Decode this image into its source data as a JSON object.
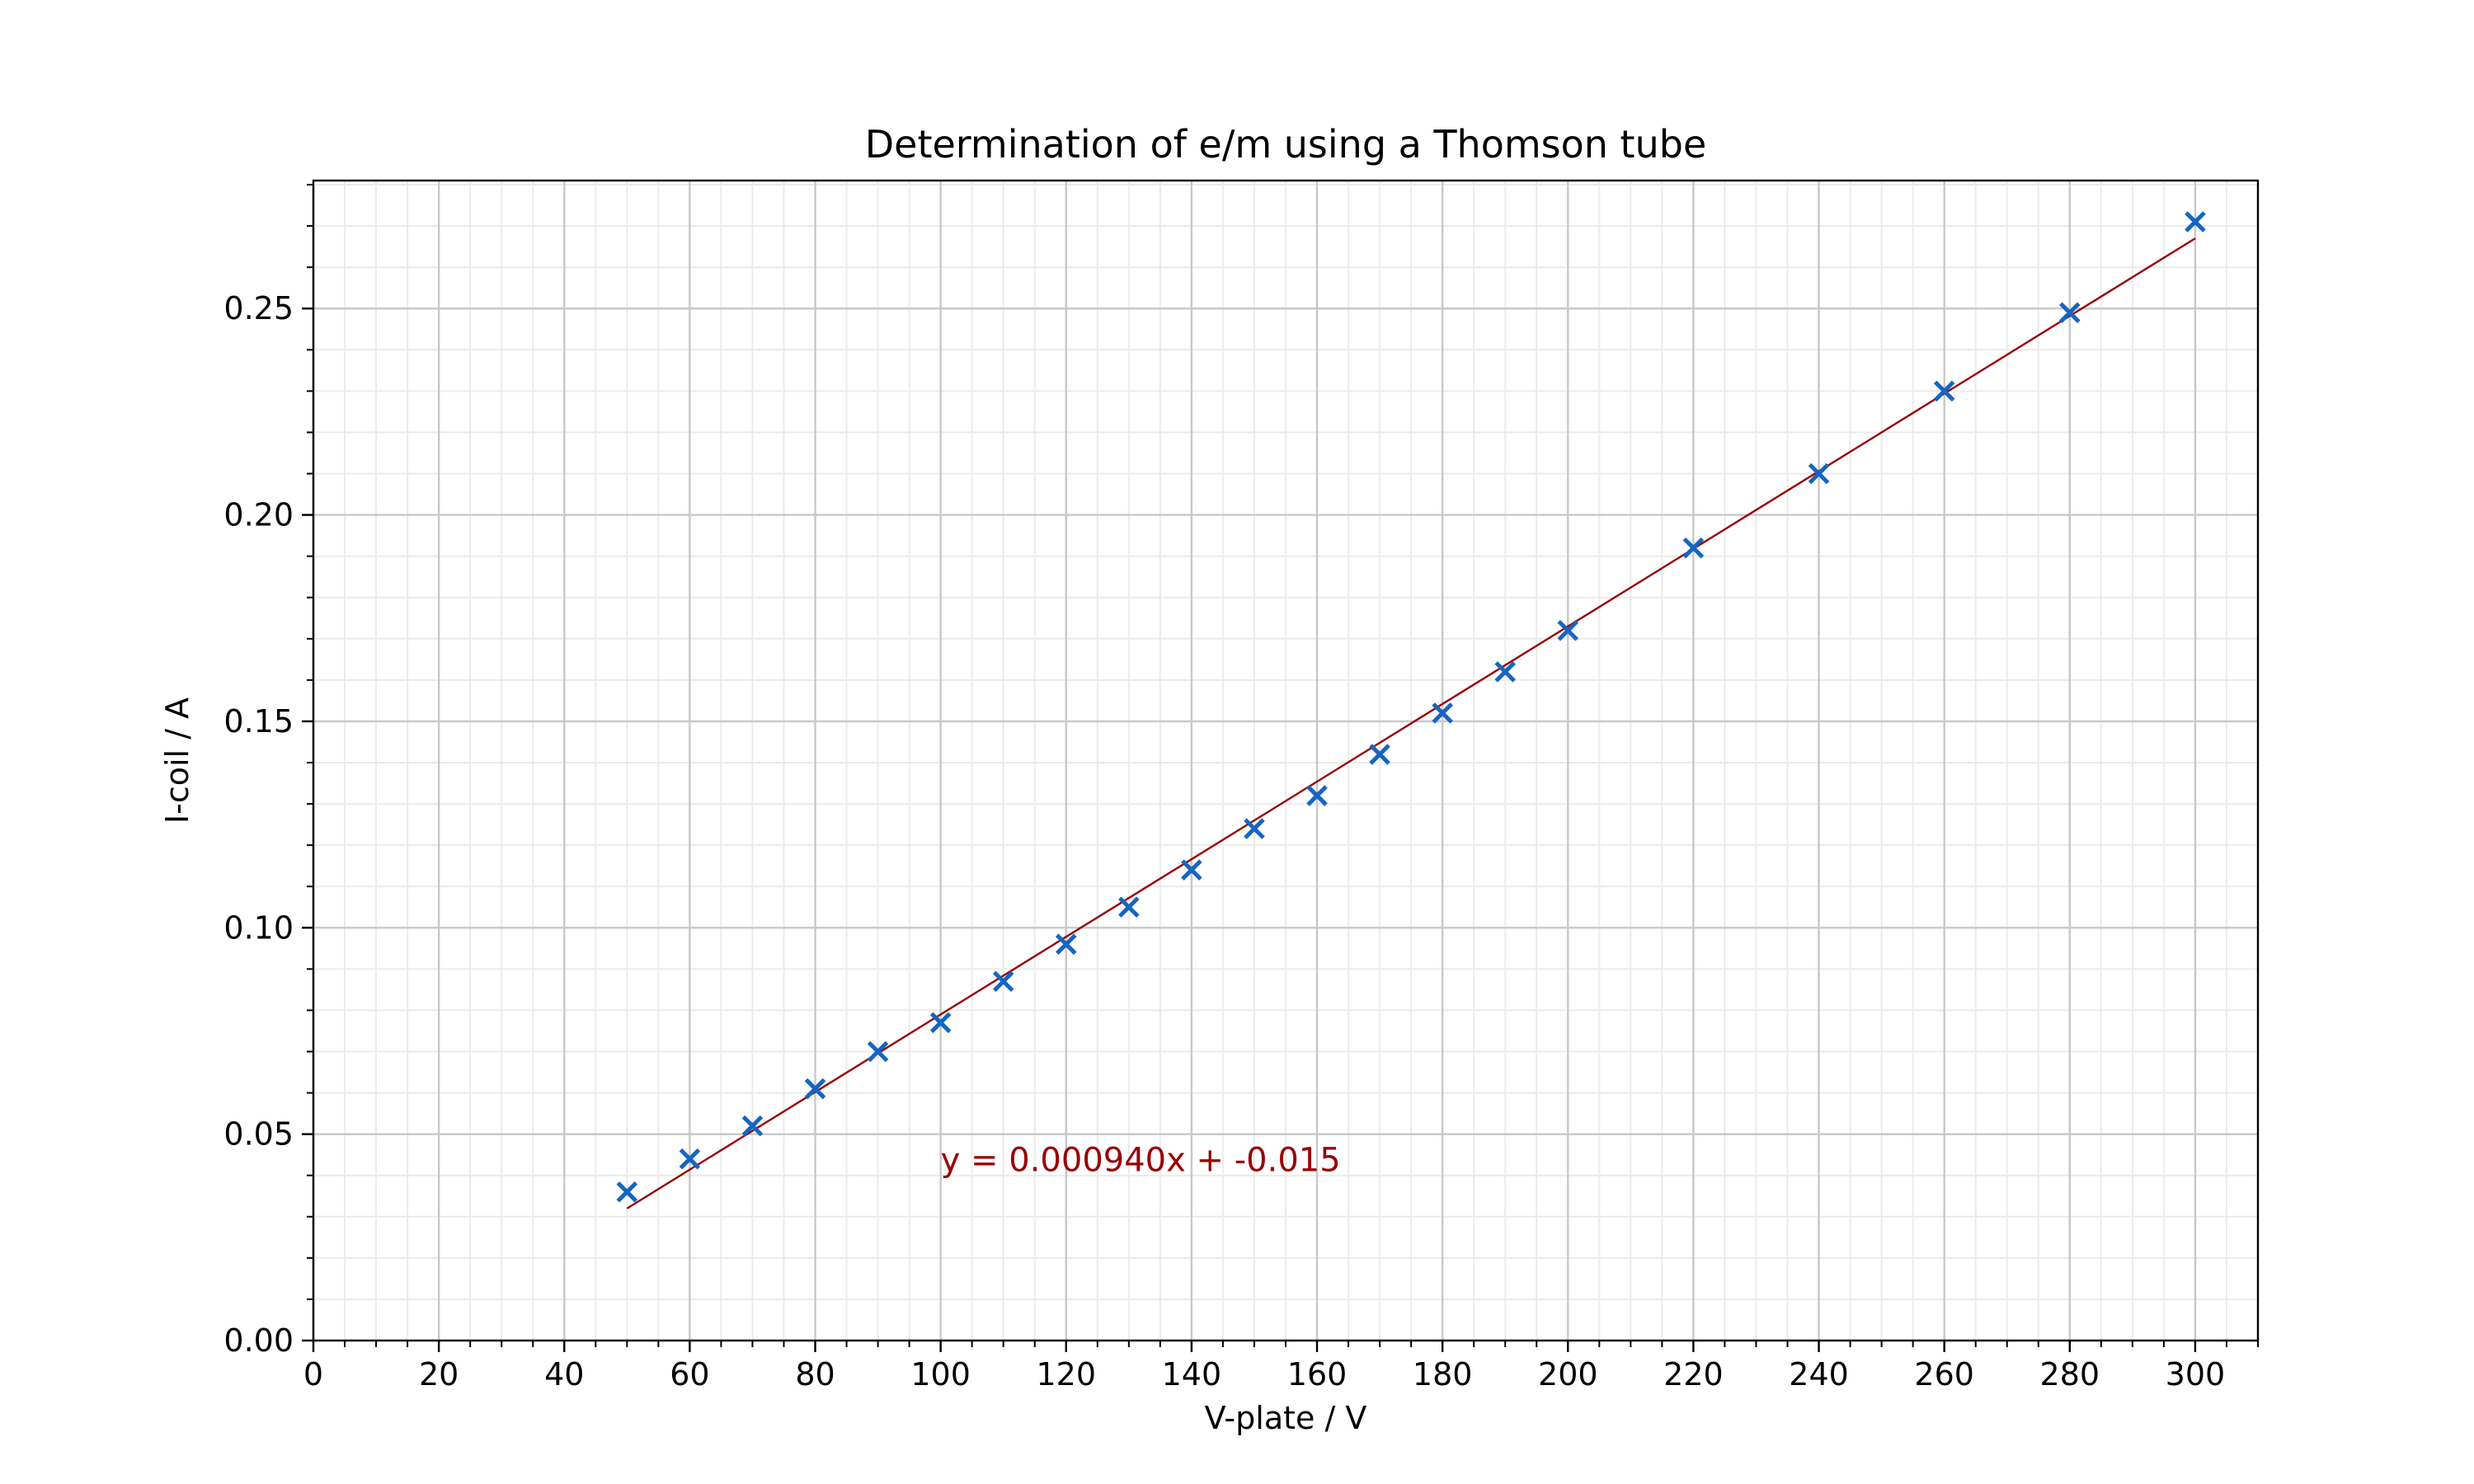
{
  "chart_data": {
    "type": "scatter",
    "title": "Determination of e/m using a Thomson tube",
    "xlabel": "V-plate / V",
    "ylabel": "I-coil / A",
    "xlim": [
      0,
      310
    ],
    "ylim": [
      0,
      0.281
    ],
    "x_ticks": [
      "0",
      "20",
      "40",
      "60",
      "80",
      "100",
      "120",
      "140",
      "160",
      "180",
      "200",
      "220",
      "240",
      "260",
      "280",
      "300"
    ],
    "y_ticks": [
      "0.00",
      "0.05",
      "0.10",
      "0.15",
      "0.20",
      "0.25"
    ],
    "grid": true,
    "minor_grid": true,
    "series": [
      {
        "marker": "x",
        "color": "#1565c0",
        "points": [
          {
            "x": 50,
            "y": 0.036
          },
          {
            "x": 60,
            "y": 0.044
          },
          {
            "x": 70,
            "y": 0.052
          },
          {
            "x": 80,
            "y": 0.061
          },
          {
            "x": 90,
            "y": 0.07
          },
          {
            "x": 100,
            "y": 0.077
          },
          {
            "x": 110,
            "y": 0.087
          },
          {
            "x": 120,
            "y": 0.096
          },
          {
            "x": 130,
            "y": 0.105
          },
          {
            "x": 140,
            "y": 0.114
          },
          {
            "x": 150,
            "y": 0.124
          },
          {
            "x": 160,
            "y": 0.132
          },
          {
            "x": 170,
            "y": 0.142
          },
          {
            "x": 180,
            "y": 0.152
          },
          {
            "x": 190,
            "y": 0.162
          },
          {
            "x": 200,
            "y": 0.172
          },
          {
            "x": 220,
            "y": 0.192
          },
          {
            "x": 240,
            "y": 0.21
          },
          {
            "x": 260,
            "y": 0.23
          },
          {
            "x": 280,
            "y": 0.249
          },
          {
            "x": 300,
            "y": 0.271
          }
        ]
      }
    ],
    "fit_line": {
      "color": "#990000",
      "slope": 0.00094,
      "intercept": -0.015,
      "x_range": [
        50,
        300
      ]
    },
    "annotation": {
      "text": "y = 0.000940x + -0.015",
      "x": 100,
      "y": 0.041,
      "color": "#990000"
    }
  }
}
